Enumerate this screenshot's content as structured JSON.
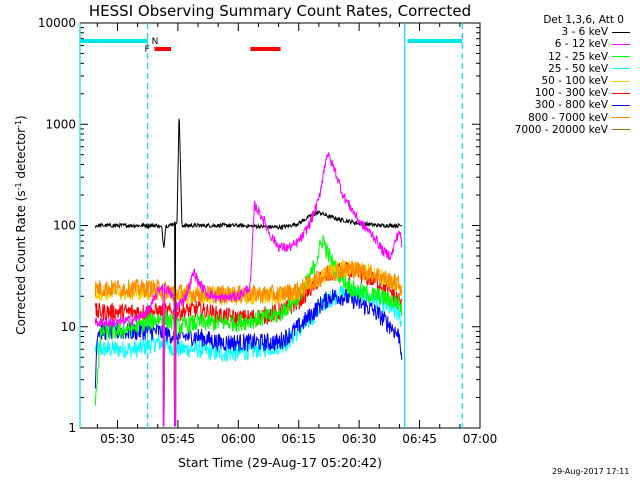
{
  "chart_data": {
    "type": "line",
    "title": "HESSI Observing Summary Count Rates, Corrected",
    "xlabel": "Start Time (29-Aug-17 05:20:42)",
    "ylabel_pre": "Corrected Count Rate (s",
    "ylabel_sup1": "-1",
    "ylabel_mid": " detector",
    "ylabel_sup2": "-1",
    "ylabel_post": ")",
    "y_scale": "log",
    "ylim": [
      1,
      10000
    ],
    "xlim_minutes": [
      20.7,
      120
    ],
    "xticks": [
      {
        "m": 30,
        "label": "05:30"
      },
      {
        "m": 45,
        "label": "05:45"
      },
      {
        "m": 60,
        "label": "06:00"
      },
      {
        "m": 75,
        "label": "06:15"
      },
      {
        "m": 90,
        "label": "06:30"
      },
      {
        "m": 105,
        "label": "06:45"
      },
      {
        "m": 120,
        "label": "07:00"
      }
    ],
    "yticks": [
      {
        "v": 1,
        "label": "1"
      },
      {
        "v": 10,
        "label": "10"
      },
      {
        "v": 100,
        "label": "100"
      },
      {
        "v": 1000,
        "label": "1000"
      },
      {
        "v": 10000,
        "label": "10000"
      }
    ],
    "legend_title": "Det 1,3,6, Att 0",
    "legend_placement": "right",
    "series": [
      {
        "name": "3 - 6 keV",
        "color": "#000000",
        "x": [
          24.5,
          26,
          30,
          35,
          39,
          40,
          41,
          41.5,
          42,
          43,
          44.8,
          45.3,
          46,
          50,
          55,
          60,
          65,
          70,
          72,
          75,
          78,
          80,
          82,
          85,
          90,
          95,
          100,
          100.7
        ],
        "y": [
          100,
          100,
          100,
          100,
          100,
          100,
          95,
          60,
          100,
          100,
          110,
          1400,
          100,
          100,
          100,
          100,
          98,
          96,
          98,
          105,
          125,
          135,
          125,
          115,
          105,
          100,
          100,
          100
        ]
      },
      {
        "name": "6 - 12 keV",
        "color": "#ff00ff",
        "x": [
          24.5,
          26,
          30,
          35,
          38,
          40,
          41,
          43,
          45,
          47,
          49,
          50,
          52,
          55,
          60,
          63,
          64,
          66,
          68,
          70,
          72,
          74,
          76,
          78,
          80,
          82,
          84,
          86,
          90,
          94,
          96,
          98,
          99,
          100,
          100.7
        ],
        "y": [
          11,
          11,
          11,
          12,
          15,
          22,
          25,
          22,
          16,
          20,
          35,
          28,
          22,
          19,
          20,
          25,
          160,
          120,
          80,
          62,
          60,
          64,
          78,
          110,
          180,
          520,
          350,
          200,
          110,
          75,
          55,
          50,
          70,
          90,
          60
        ]
      },
      {
        "name": "12 - 25 keV",
        "color": "#00ff00",
        "x": [
          24.5,
          26,
          30,
          35,
          40,
          42,
          45,
          50,
          55,
          60,
          65,
          70,
          75,
          78,
          80,
          81,
          82,
          84,
          86,
          88,
          90,
          95,
          100,
          100.7
        ],
        "y": [
          2,
          9,
          9,
          10,
          12,
          12,
          10,
          11,
          11,
          11,
          12,
          13,
          20,
          32,
          55,
          75,
          55,
          38,
          30,
          24,
          22,
          20,
          17,
          14
        ]
      },
      {
        "name": "25 - 50 keV",
        "color": "#00ffff",
        "x": [
          24.5,
          26,
          30,
          35,
          40,
          45,
          50,
          55,
          60,
          65,
          70,
          72,
          75,
          78,
          80,
          82,
          85,
          88,
          90,
          95,
          100,
          100.7
        ],
        "y": [
          6,
          6,
          6,
          6,
          7,
          6,
          6,
          5.5,
          5.5,
          6,
          6.5,
          7,
          9,
          12,
          15,
          18,
          21,
          22,
          21,
          18,
          13,
          10
        ]
      },
      {
        "name": "50 - 100 keV",
        "color": "#ffcc00",
        "x": [
          24.5,
          26,
          30,
          35,
          40,
          45,
          50,
          55,
          60,
          65,
          70,
          75,
          80,
          85,
          88,
          90,
          95,
          100,
          100.7
        ],
        "y": [
          22,
          22,
          22,
          22,
          22,
          20,
          20,
          20,
          20,
          20,
          20,
          22,
          30,
          38,
          38,
          36,
          32,
          26,
          22
        ]
      },
      {
        "name": "100 - 300 keV",
        "color": "#ff0000",
        "x": [
          24.5,
          26,
          30,
          35,
          40,
          45,
          50,
          55,
          60,
          65,
          70,
          72,
          75,
          78,
          80,
          83,
          85,
          88,
          90,
          93,
          95,
          98,
          100,
          100.7
        ],
        "y": [
          14,
          14,
          14,
          14,
          14,
          14,
          15,
          13,
          12,
          12.5,
          14,
          15,
          18,
          24,
          30,
          34,
          36,
          35,
          33,
          30,
          27,
          22,
          18,
          15
        ]
      },
      {
        "name": "300 - 800 keV",
        "color": "#0000ff",
        "x": [
          24.5,
          25,
          26,
          30,
          35,
          40,
          45,
          50,
          55,
          60,
          65,
          70,
          72,
          75,
          78,
          80,
          83,
          85,
          88,
          90,
          93,
          95,
          98,
          100,
          100.7
        ],
        "y": [
          3,
          9,
          9,
          9,
          9,
          9,
          8,
          8,
          7,
          7,
          7,
          7,
          8,
          10,
          13,
          16,
          20,
          20,
          19,
          17,
          15,
          13,
          10,
          8,
          5
        ]
      },
      {
        "name": "800 - 7000 keV",
        "color": "#ff8800",
        "x": [
          24.5,
          26,
          30,
          35,
          40,
          45,
          50,
          55,
          60,
          65,
          70,
          75,
          80,
          85,
          88,
          90,
          95,
          100,
          100.7
        ],
        "y": [
          24,
          24,
          24,
          24,
          24,
          22,
          21,
          21,
          21,
          21,
          21,
          23,
          30,
          36,
          37,
          36,
          32,
          26,
          24
        ]
      },
      {
        "name": "7000 - 20000 keV",
        "color": "#8b6b00",
        "x": [],
        "y": []
      }
    ],
    "spikes_down_minutes": [
      41.5,
      44.3
    ],
    "markers": [
      {
        "label": "F",
        "color": "#ff0000",
        "x_start": 39.2,
        "x_end": 43.3
      },
      {
        "label": "",
        "color": "#ff0000",
        "x_start": 63.0,
        "x_end": 70.5
      },
      {
        "label": "N",
        "color": "#00e5e5",
        "x_start": 20.7,
        "x_end": 37.5
      },
      {
        "label": "",
        "color": "#00e5e5",
        "x_start": 102.0,
        "x_end": 115.6
      }
    ],
    "vlines_solid": [
      20.7,
      101.3
    ],
    "vlines_dashed": [
      37.5,
      115.6
    ]
  },
  "timestamp": "29-Aug-2017 17:11"
}
